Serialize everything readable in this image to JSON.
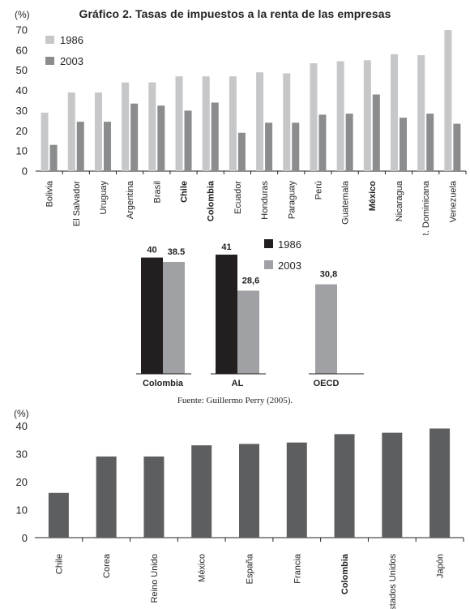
{
  "title": "Gráfico 2. Tasas de impuestos a la renta de las empresas",
  "source": "Fuente: Guillermo Perry (2005).",
  "colors": {
    "c1986_light": "#c6c7c9",
    "c2003_mid": "#8b8c8e",
    "c1986_dark": "#231f20",
    "c2003_light": "#a0a1a4",
    "bar_dark": "#5d5e60",
    "axis": "#231f20"
  },
  "chart_data": [
    {
      "type": "bar",
      "ylabel": "(%)",
      "ylim": [
        0,
        70
      ],
      "yticks": [
        0,
        10,
        20,
        30,
        40,
        50,
        60,
        70
      ],
      "legend_position": "top-left",
      "categories": [
        "Bolivia",
        "El Salvador",
        "Uruguay",
        "Argentina",
        "Brasil",
        "Chile",
        "Colombia",
        "Ecuador",
        "Honduras",
        "Paraguay",
        "Perú",
        "Guatemala",
        "México",
        "Nicaragua",
        "R. Dominicana",
        "Venezuela"
      ],
      "bold_categories": [
        "Chile",
        "Colombia",
        "México"
      ],
      "series": [
        {
          "name": "1986",
          "values": [
            29,
            39,
            39,
            44,
            44,
            47,
            47,
            47,
            49,
            48.5,
            53.5,
            54.5,
            55,
            58,
            57.5,
            70
          ]
        },
        {
          "name": "2003",
          "values": [
            13,
            24.5,
            24.5,
            33.5,
            32.5,
            30,
            34,
            19,
            24,
            24,
            28,
            28.5,
            38,
            26.5,
            28.5,
            23.5
          ]
        }
      ]
    },
    {
      "type": "bar",
      "categories": [
        "Colombia",
        "AL",
        "OECD"
      ],
      "legend_position": "top-right",
      "series": [
        {
          "name": "1986",
          "values": [
            40,
            41,
            null
          ],
          "labels": [
            "40",
            "41",
            ""
          ]
        },
        {
          "name": "2003",
          "values": [
            38.5,
            28.6,
            30.8
          ],
          "labels": [
            "38.5",
            "28,6",
            "30,8"
          ]
        }
      ]
    },
    {
      "type": "bar",
      "ylabel": "(%)",
      "ylim": [
        0,
        40
      ],
      "yticks": [
        0,
        10,
        20,
        30,
        40
      ],
      "categories": [
        "Chile",
        "Corea",
        "Reino Unido",
        "México",
        "España",
        "Francia",
        "Colombia",
        "Estados Unidos",
        "Japón"
      ],
      "bold_categories": [
        "Colombia"
      ],
      "values": [
        16,
        29,
        29,
        33,
        33.5,
        34,
        37,
        37.5,
        39
      ]
    }
  ]
}
